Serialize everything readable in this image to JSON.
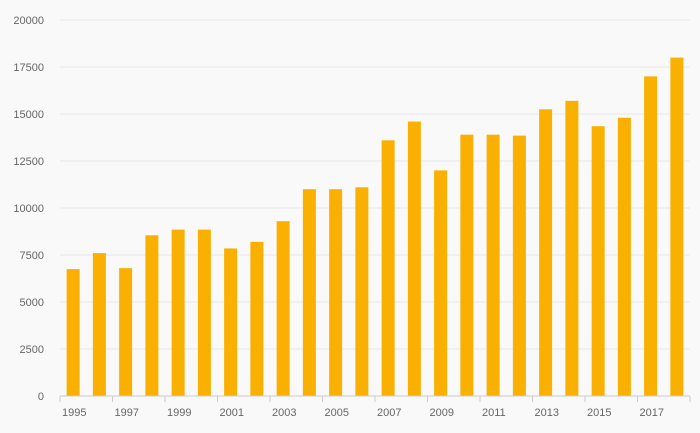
{
  "chart_data": {
    "type": "bar",
    "title": "",
    "xlabel": "",
    "ylabel": "",
    "categories": [
      "1995",
      "1996",
      "1997",
      "1998",
      "1999",
      "2000",
      "2001",
      "2002",
      "2003",
      "2004",
      "2005",
      "2006",
      "2007",
      "2008",
      "2009",
      "2010",
      "2011",
      "2012",
      "2013",
      "2014",
      "2015",
      "2016",
      "2017",
      "2018"
    ],
    "values": [
      6750,
      7600,
      6800,
      8550,
      8850,
      8850,
      7850,
      8200,
      9300,
      11000,
      11000,
      11100,
      13600,
      14600,
      12000,
      13900,
      13900,
      13850,
      15250,
      15700,
      14350,
      14800,
      17000,
      18000
    ],
    "x_tick_labels": [
      "1995",
      "1997",
      "1999",
      "2001",
      "2003",
      "2005",
      "2007",
      "2009",
      "2011",
      "2013",
      "2015",
      "2017"
    ],
    "y_ticks": [
      0,
      2500,
      5000,
      7500,
      10000,
      12500,
      15000,
      17500,
      20000
    ],
    "y_tick_labels": [
      "0",
      "2500",
      "5000",
      "7500",
      "10000",
      "12500",
      "15000",
      "17500",
      "20000"
    ],
    "ylim": [
      0,
      20000
    ],
    "grid": true,
    "legend": "none",
    "colors": {
      "bar": "#f9b000",
      "grid": "#e6e6e6",
      "axis": "#cccccc",
      "label": "#666666",
      "background": "#f9f9f9"
    }
  }
}
